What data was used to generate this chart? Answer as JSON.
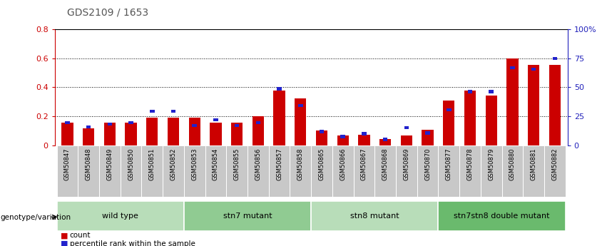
{
  "title": "GDS2109 / 1653",
  "samples": [
    "GSM50847",
    "GSM50848",
    "GSM50849",
    "GSM50850",
    "GSM50851",
    "GSM50852",
    "GSM50853",
    "GSM50854",
    "GSM50855",
    "GSM50856",
    "GSM50857",
    "GSM50858",
    "GSM50865",
    "GSM50866",
    "GSM50867",
    "GSM50868",
    "GSM50869",
    "GSM50870",
    "GSM50877",
    "GSM50878",
    "GSM50879",
    "GSM50880",
    "GSM50881",
    "GSM50882"
  ],
  "count_values": [
    0.155,
    0.115,
    0.155,
    0.155,
    0.19,
    0.19,
    0.19,
    0.155,
    0.155,
    0.2,
    0.38,
    0.325,
    0.1,
    0.065,
    0.07,
    0.04,
    0.065,
    0.105,
    0.31,
    0.38,
    0.345,
    0.6,
    0.555,
    0.555
  ],
  "percentile_values": [
    0.155,
    0.125,
    0.145,
    0.155,
    0.235,
    0.235,
    0.135,
    0.175,
    0.135,
    0.155,
    0.39,
    0.275,
    0.095,
    0.06,
    0.08,
    0.04,
    0.12,
    0.085,
    0.245,
    0.37,
    0.37,
    0.535,
    0.525,
    0.6
  ],
  "groups": [
    {
      "label": "wild type",
      "start": 0,
      "end": 5,
      "color": "#b8ddb9"
    },
    {
      "label": "stn7 mutant",
      "start": 6,
      "end": 11,
      "color": "#90cb92"
    },
    {
      "label": "stn8 mutant",
      "start": 12,
      "end": 17,
      "color": "#b8ddb9"
    },
    {
      "label": "stn7stn8 double mutant",
      "start": 18,
      "end": 23,
      "color": "#6aba6d"
    }
  ],
  "ylim_left": [
    0,
    0.8
  ],
  "ylim_right": [
    0,
    100
  ],
  "yticks_left": [
    0,
    0.2,
    0.4,
    0.6,
    0.8
  ],
  "ytick_labels_left": [
    "0",
    "0.2",
    "0.4",
    "0.6",
    "0.8"
  ],
  "yticks_right": [
    0,
    25,
    50,
    75,
    100
  ],
  "ytick_labels_right": [
    "0",
    "25",
    "50",
    "75",
    "100%"
  ],
  "bar_color_red": "#cc0000",
  "bar_color_blue": "#2222cc",
  "bar_width": 0.55,
  "legend_label_count": "count",
  "legend_label_percentile": "percentile rank within the sample",
  "genotype_label": "genotype/variation",
  "left_axis_color": "#cc0000",
  "right_axis_color": "#2222bb"
}
